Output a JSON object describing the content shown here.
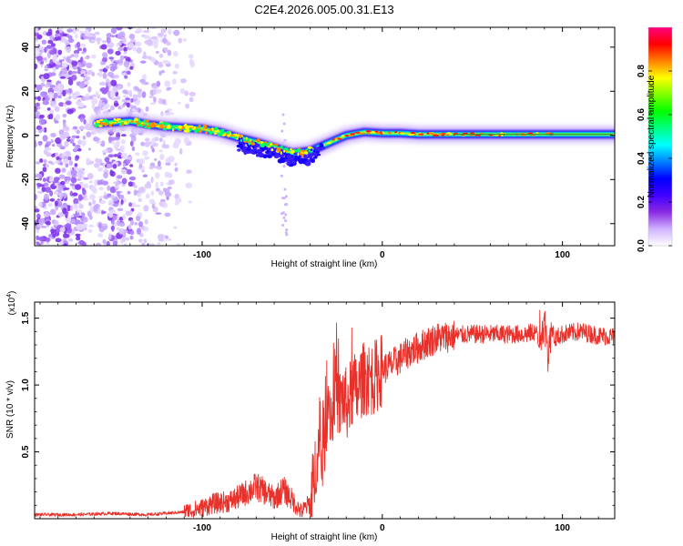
{
  "title": "C2E4.2026.005.00.31.E13",
  "chart_data": [
    {
      "type": "heatmap",
      "title": "C2E4.2026.005.00.31.E13",
      "xlabel": "Height of straight line (km)",
      "ylabel": "Frequency (Hz)",
      "xlim": [
        -193,
        129
      ],
      "ylim": [
        -50,
        49
      ],
      "xticks": [
        -100,
        0,
        100
      ],
      "xtick_labels": [
        "-100",
        "0",
        "100"
      ],
      "yticks": [
        -40,
        -20,
        0,
        20,
        40
      ],
      "ytick_labels": [
        "-40",
        "-20",
        "0",
        "20",
        "40"
      ],
      "ridge": {
        "description": "dominant frequency track of normalized spectral amplitude",
        "x": [
          -158,
          -148,
          -140,
          -130,
          -120,
          -110,
          -100,
          -90,
          -80,
          -70,
          -60,
          -50,
          -40,
          -30,
          -20,
          -10,
          0,
          10,
          20,
          40,
          60,
          80,
          90,
          100,
          129
        ],
        "y": [
          5.5,
          6,
          6.5,
          5,
          4,
          3.5,
          3,
          1.5,
          -1,
          -3,
          -5.5,
          -8,
          -7,
          -3.5,
          0,
          1.5,
          1,
          1,
          0.5,
          0.5,
          0.5,
          0.5,
          0.5,
          0.5,
          0.5
        ]
      },
      "colorbar": {
        "label": "Normalized spectral amplitude",
        "range": [
          0.0,
          1.0
        ],
        "ticks": [
          0.0,
          0.2,
          0.4,
          0.6,
          0.8
        ],
        "tick_labels": [
          "0.0",
          "0.2",
          "0.4",
          "0.6",
          "0.8"
        ],
        "colors": [
          "#ffffff",
          "#cfb2ff",
          "#8a2be2",
          "#4000ff",
          "#0000ff",
          "#0080ff",
          "#00ffff",
          "#00ff80",
          "#00ff00",
          "#80ff00",
          "#ffff00",
          "#ff8000",
          "#ff0000",
          "#ff0080"
        ]
      }
    },
    {
      "type": "line",
      "xlabel": "Height of straight line (km)",
      "ylabel": "SNR (10 * v/v)",
      "y_multiplier": "(x10",
      "y_multiplier_exp": "4",
      "y_multiplier_close": ")",
      "xlim": [
        -193,
        129
      ],
      "ylim": [
        0,
        1.62
      ],
      "xticks": [
        -100,
        0,
        100
      ],
      "xtick_labels": [
        "-100",
        "0",
        "100"
      ],
      "yticks": [
        0.5,
        1.0,
        1.5
      ],
      "ytick_labels": [
        "0.5",
        "1.0",
        "1.5"
      ],
      "color": "#e8312a",
      "series": [
        {
          "name": "SNR",
          "x": [
            -193,
            -170,
            -150,
            -130,
            -120,
            -110,
            -100,
            -95,
            -90,
            -85,
            -80,
            -75,
            -70,
            -65,
            -60,
            -55,
            -50,
            -45,
            -40,
            -38,
            -36,
            -34,
            -32,
            -30,
            -28,
            -26,
            -24,
            -22,
            -20,
            -18,
            -16,
            -14,
            -12,
            -10,
            -5,
            0,
            5,
            10,
            15,
            20,
            25,
            30,
            35,
            40,
            50,
            60,
            70,
            80,
            85,
            88,
            90,
            92,
            94,
            96,
            100,
            110,
            120,
            129
          ],
          "y": [
            0.03,
            0.03,
            0.04,
            0.03,
            0.04,
            0.05,
            0.08,
            0.11,
            0.12,
            0.13,
            0.16,
            0.2,
            0.24,
            0.2,
            0.15,
            0.22,
            0.14,
            0.05,
            0.12,
            0.28,
            0.55,
            0.38,
            0.6,
            0.95,
            0.72,
            1.05,
            0.82,
            0.92,
            0.85,
            0.9,
            0.98,
            0.94,
            1.02,
            1.05,
            1.05,
            1.12,
            1.15,
            1.2,
            1.25,
            1.28,
            1.32,
            1.35,
            1.36,
            1.37,
            1.38,
            1.38,
            1.38,
            1.38,
            1.4,
            1.3,
            1.58,
            1.25,
            1.45,
            1.35,
            1.38,
            1.4,
            1.37,
            1.36
          ]
        }
      ]
    }
  ]
}
